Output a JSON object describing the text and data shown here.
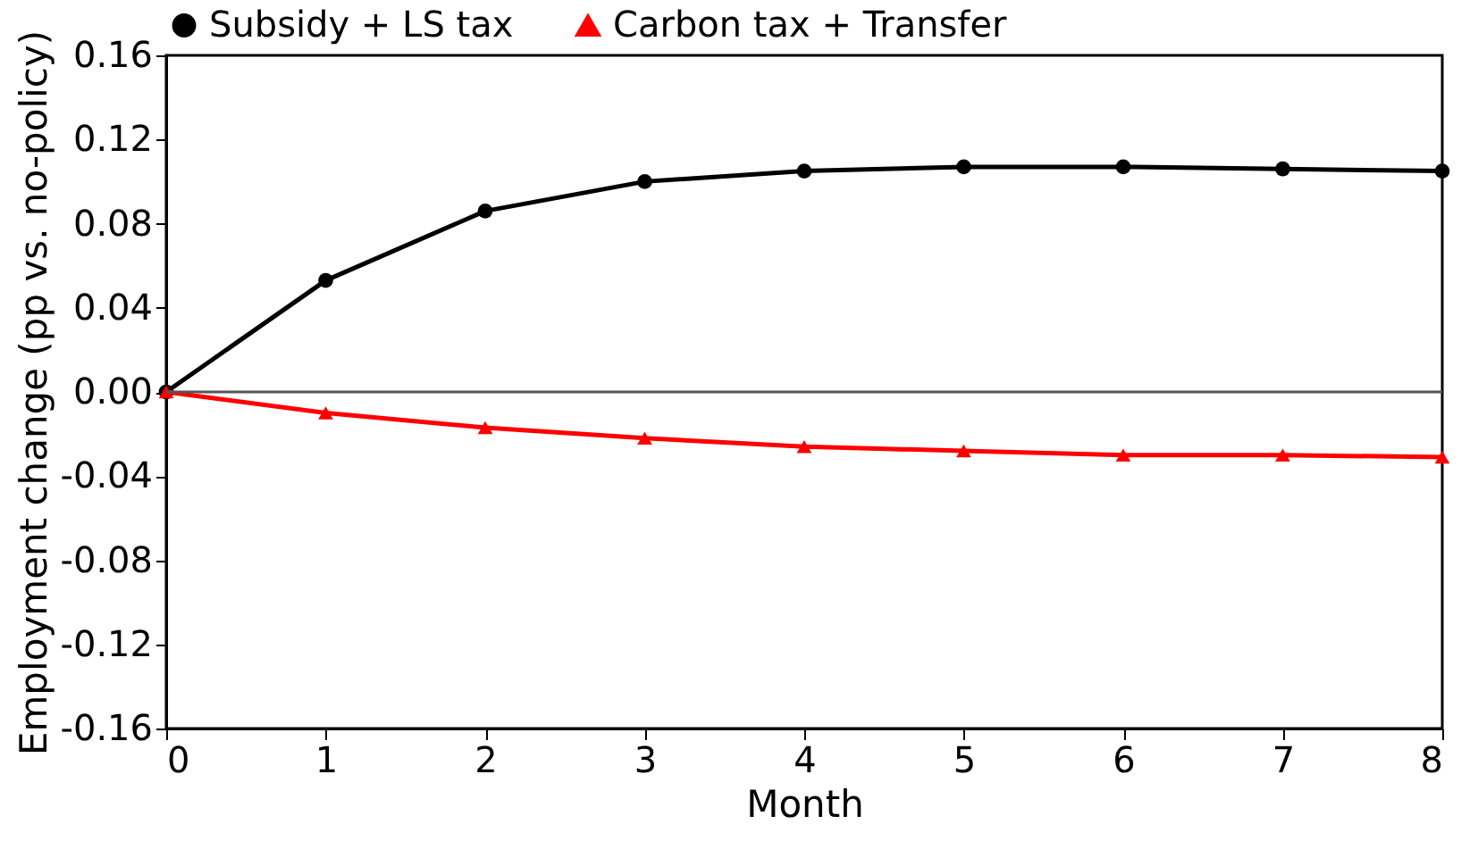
{
  "chart_data": {
    "type": "line",
    "xlabel": "Month",
    "ylabel": "Employment change (pp vs. no-policy)",
    "x": [
      0,
      1,
      2,
      3,
      4,
      5,
      6,
      7,
      8
    ],
    "series": [
      {
        "name": "Subsidy + LS tax",
        "color": "#000000",
        "marker": "circle",
        "values": [
          0,
          0.053,
          0.086,
          0.1,
          0.105,
          0.107,
          0.107,
          0.106,
          0.105
        ]
      },
      {
        "name": "Carbon tax + Transfer",
        "color": "#ff0000",
        "marker": "triangle",
        "values": [
          0,
          -0.01,
          -0.017,
          -0.022,
          -0.026,
          -0.028,
          -0.03,
          -0.03,
          -0.031
        ]
      }
    ],
    "xlim": [
      0,
      8
    ],
    "xticks": [
      0,
      1,
      2,
      3,
      4,
      5,
      6,
      7,
      8
    ],
    "ylim": [
      -0.16,
      0.16
    ],
    "yticks": [
      {
        "value": -0.16,
        "label": "-0.16"
      },
      {
        "value": -0.12,
        "label": "-0.12"
      },
      {
        "value": -0.08,
        "label": "-0.08"
      },
      {
        "value": -0.04,
        "label": "-0.04"
      },
      {
        "value": 0,
        "label": "0.00"
      },
      {
        "value": 0.04,
        "label": "0.04"
      },
      {
        "value": 0.08,
        "label": "0.08"
      },
      {
        "value": 0.12,
        "label": "0.12"
      },
      {
        "value": 0.16,
        "label": "0.16"
      }
    ],
    "ref_lines": [
      {
        "axis": "y",
        "value": 0,
        "color": "#555555"
      }
    ],
    "grid": false,
    "legend": "top",
    "line_style": "solid"
  }
}
